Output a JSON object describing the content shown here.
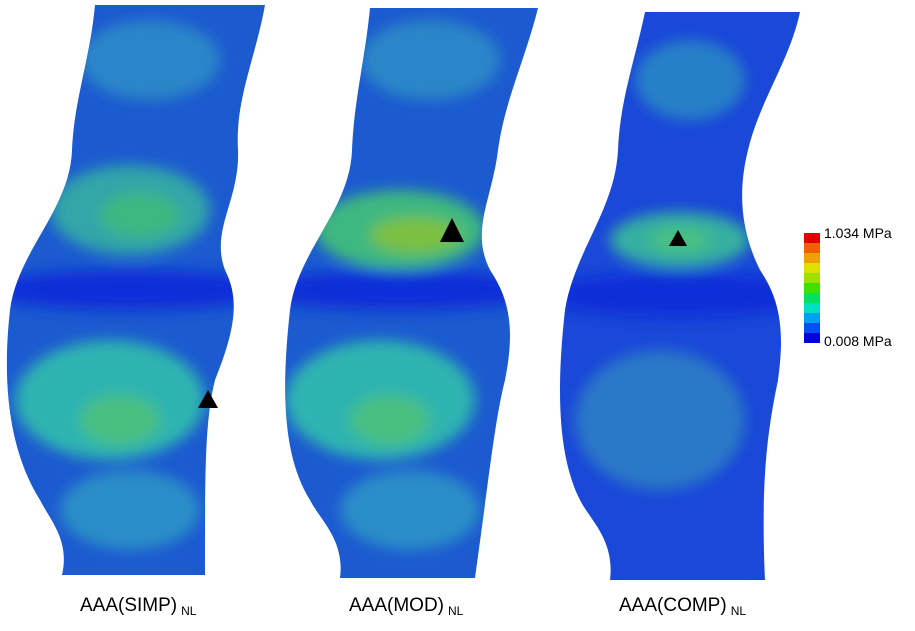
{
  "panels": [
    {
      "label": "AAA(SIMP)",
      "subscript": "NL"
    },
    {
      "label": "AAA(MOD)",
      "subscript": "NL"
    },
    {
      "label": "AAA(COMP)",
      "subscript": "NL"
    }
  ],
  "colorbar": {
    "max_label": "1.034 MPa",
    "min_label": "0.008 MPa"
  }
}
